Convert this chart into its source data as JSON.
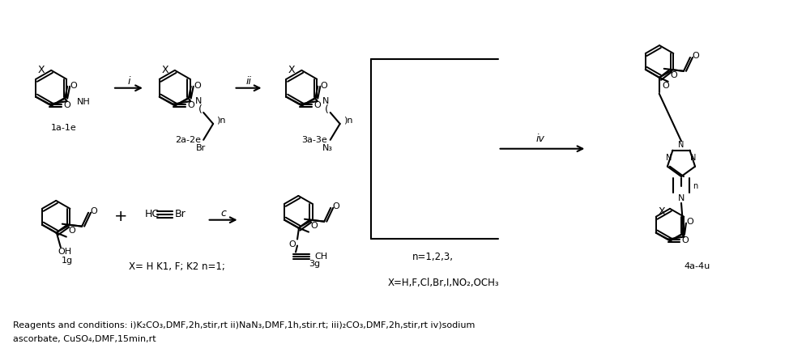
{
  "background_color": "#ffffff",
  "figure_width": 9.74,
  "figure_height": 4.46,
  "dpi": 100,
  "reagents_line1": "Reagents and conditions: i)K₂CO₃,DMF,2h,stir,rt ii)NaN₃,DMF,1h,stir.rt; iii)₂CO₃,DMF,2h,stir,rt iv)sodium",
  "reagents_line2": "ascorbate, CuSO₄,DMF,15min,rt",
  "x_label": "X= H K1, F; K2 n=1;",
  "n_label": "n=1,2,3,",
  "x_values": "X=H,F,Cl,Br,I,NO₂,OCH₃"
}
